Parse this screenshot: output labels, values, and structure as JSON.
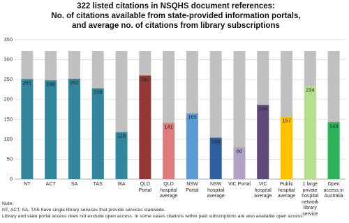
{
  "chart_data": {
    "type": "bar",
    "title": [
      "322 listed citations in NSQHS document references:",
      "No. of citations available from state-provided information portals,",
      "and average no. of citations from library subscriptions"
    ],
    "total": 322,
    "total_color": "#c0c0c0",
    "categories": [
      "NT",
      "ACT",
      "SA",
      "TAS",
      "WA",
      "QLD Portal",
      "QLD hospital average",
      "NSW Portal",
      "NSW hospital average",
      "VIC Portal",
      "VIC hospital average",
      "Public hospital average",
      "1 large private hospital network library service",
      "Open access in Australia"
    ],
    "values": [
      251,
      248,
      252,
      228,
      118,
      260,
      141,
      165,
      104,
      80,
      186,
      157,
      234,
      143
    ],
    "colors": [
      "#31859c",
      "#31859c",
      "#31859c",
      "#31859c",
      "#31859c",
      "#943634",
      "#e07b7b",
      "#5b9bd5",
      "#2e5f9f",
      "#b3a2c7",
      "#604a7b",
      "#ffc000",
      "#b5de8e",
      "#2db35a"
    ],
    "ylim": [
      0,
      350
    ],
    "yticks": [
      0,
      50,
      100,
      150,
      200,
      250,
      300,
      350
    ],
    "grid": true,
    "notes": [
      "Note:",
      "NT, ACT, SA, TAS have single library services that provide services statewide.",
      "Library and state portal access does not exclude open access. In some cases citations within paid subscriptions are also available open access."
    ]
  }
}
